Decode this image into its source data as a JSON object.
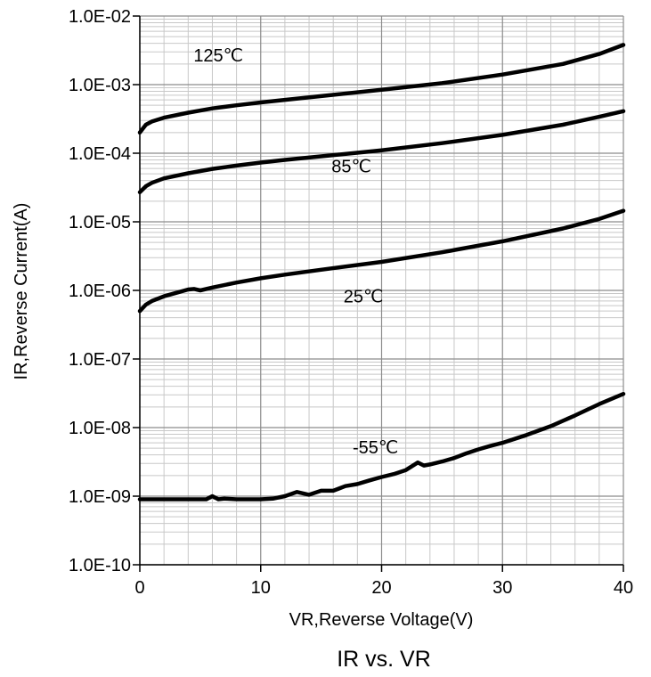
{
  "caption": "IR vs. VR",
  "chart_data": {
    "type": "line",
    "title": "",
    "xlabel": "VR,Reverse Voltage(V)",
    "ylabel": "IR,Reverse Current(A)",
    "xlim": [
      0,
      40
    ],
    "ylim": [
      1e-10,
      0.01
    ],
    "yscale": "log",
    "grid": true,
    "x_ticks": [
      0,
      10,
      20,
      30,
      40
    ],
    "x_tick_labels": [
      "0",
      "10",
      "20",
      "30",
      "40"
    ],
    "y_ticks": [
      1e-10,
      1e-09,
      1e-08,
      1e-07,
      1e-06,
      1e-05,
      0.0001,
      0.001,
      0.01
    ],
    "y_tick_labels": [
      "1.0E-10",
      "1.0E-09",
      "1.0E-08",
      "1.0E-07",
      "1.0E-06",
      "1.0E-05",
      "1.0E-04",
      "1.0E-03",
      "1.0E-02"
    ],
    "series": [
      {
        "name": "125℃",
        "x": [
          0,
          0.5,
          1,
          2,
          4,
          6,
          8,
          10,
          12,
          15,
          20,
          25,
          30,
          35,
          38,
          40
        ],
        "values": [
          0.0002,
          0.00026,
          0.00029,
          0.00033,
          0.00039,
          0.00045,
          0.0005,
          0.00055,
          0.0006,
          0.00068,
          0.00084,
          0.00105,
          0.0014,
          0.002,
          0.0028,
          0.0038
        ]
      },
      {
        "name": "85℃",
        "x": [
          0,
          0.5,
          1,
          2,
          4,
          6,
          8,
          10,
          12,
          15,
          20,
          25,
          30,
          35,
          38,
          40
        ],
        "values": [
          2.7e-05,
          3.3e-05,
          3.7e-05,
          4.3e-05,
          5.1e-05,
          5.9e-05,
          6.6e-05,
          7.3e-05,
          8e-05,
          9e-05,
          0.00011,
          0.00014,
          0.000185,
          0.00026,
          0.00034,
          0.00041
        ]
      },
      {
        "name": "25℃",
        "x": [
          0,
          0.5,
          1,
          2,
          3,
          4,
          4.5,
          5,
          6,
          8,
          10,
          12,
          15,
          20,
          25,
          30,
          35,
          38,
          40
        ],
        "values": [
          5e-07,
          6.2e-07,
          7e-07,
          8.2e-07,
          9.2e-07,
          1.03e-06,
          1.05e-06,
          1e-06,
          1.1e-06,
          1.3e-06,
          1.5e-06,
          1.7e-06,
          2e-06,
          2.6e-06,
          3.6e-06,
          5.2e-06,
          8e-06,
          1.1e-05,
          1.45e-05
        ]
      },
      {
        "name": "-55℃",
        "x": [
          0,
          2,
          4,
          5.5,
          6,
          6.5,
          7,
          8,
          10,
          11,
          12,
          13,
          14,
          15,
          16,
          17,
          18,
          19,
          20,
          21,
          22,
          23,
          23.5,
          24,
          25,
          26,
          27,
          28,
          29,
          30,
          32,
          34,
          36,
          38,
          40
        ],
        "values": [
          9e-10,
          9e-10,
          9e-10,
          9e-10,
          1e-09,
          9e-10,
          9.2e-10,
          9e-10,
          9e-10,
          9.2e-10,
          1e-09,
          1.15e-09,
          1.05e-09,
          1.2e-09,
          1.2e-09,
          1.4e-09,
          1.5e-09,
          1.7e-09,
          1.9e-09,
          2.1e-09,
          2.4e-09,
          3.1e-09,
          2.8e-09,
          2.9e-09,
          3.2e-09,
          3.6e-09,
          4.2e-09,
          4.8e-09,
          5.4e-09,
          6e-09,
          7.8e-09,
          1.05e-08,
          1.5e-08,
          2.2e-08,
          3.1e-08
        ]
      }
    ],
    "curve_labels": [
      {
        "text": "125℃",
        "x": 6.5,
        "y": 0.0027
      },
      {
        "text": "85℃",
        "x": 17.5,
        "y": 6.5e-05
      },
      {
        "text": "25℃",
        "x": 18.5,
        "y": 8.2e-07
      },
      {
        "text": "-55℃",
        "x": 19.5,
        "y": 5.2e-09
      }
    ]
  }
}
